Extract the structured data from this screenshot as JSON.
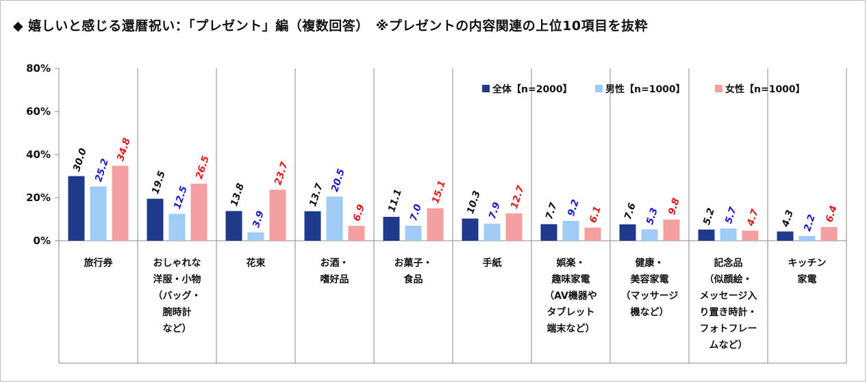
{
  "title": "◆ 嬉しいと感じる還暦祝い：「プレゼント」編（複数回答）　※プレゼントの内容関連の上位10項目を抜粋",
  "colors": {
    "all": "#1f3a8a",
    "male": "#9fcbf5",
    "female": "#f4a0a0",
    "all_label": "#111111",
    "male_label": "#1a1acc",
    "female_label": "#e0191e"
  },
  "chart_data": {
    "type": "bar",
    "title": "◆ 嬉しいと感じる還暦祝い：「プレゼント」編（複数回答）　※プレゼントの内容関連の上位10項目を抜粋",
    "ylim": [
      0,
      80
    ],
    "yticks": [
      0,
      20,
      40,
      60,
      80
    ],
    "ytick_labels": [
      "0%",
      "20%",
      "40%",
      "60%",
      "80%"
    ],
    "legend_position": "top-right",
    "grid": false,
    "categories": [
      [
        "旅行券"
      ],
      [
        "おしゃれな",
        "洋服・小物",
        "（バッグ・",
        "腕時計",
        "など）"
      ],
      [
        "花束"
      ],
      [
        "お酒・",
        "嗜好品"
      ],
      [
        "お菓子・",
        "食品"
      ],
      [
        "手紙"
      ],
      [
        "娯楽・",
        "趣味家電",
        "（AV機器や",
        "タブレット",
        "端末など）"
      ],
      [
        "健康・",
        "美容家電",
        "（マッサージ",
        "機など）"
      ],
      [
        "記念品",
        "（似顔絵・",
        "メッセージ入",
        "り置き時計・",
        "フォトフレー",
        "ムなど）"
      ],
      [
        "キッチン",
        "家電"
      ]
    ],
    "series": [
      {
        "name": "全体【n=2000】",
        "values": [
          30.0,
          19.5,
          13.8,
          13.7,
          11.1,
          10.3,
          7.7,
          7.6,
          5.2,
          4.3
        ]
      },
      {
        "name": "男性【n=1000】",
        "values": [
          25.2,
          12.5,
          3.9,
          20.5,
          7.0,
          7.9,
          9.2,
          5.3,
          5.7,
          2.2
        ]
      },
      {
        "name": "女性【n=1000】",
        "values": [
          34.8,
          26.5,
          23.7,
          6.9,
          15.1,
          12.7,
          6.1,
          9.8,
          4.7,
          6.4
        ]
      }
    ]
  }
}
